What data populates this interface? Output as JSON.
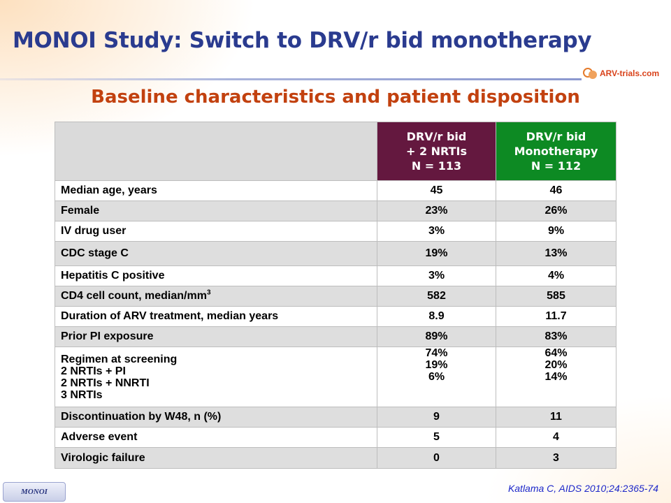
{
  "slide": {
    "title": "MONOI Study: Switch to DRV/r bid monotherapy",
    "subtitle": "Baseline characteristics and patient disposition",
    "logo_text": "ARV-trials.com",
    "citation": "Katlama C, AIDS 2010;24:2365-74",
    "tag": "MONOI"
  },
  "table": {
    "columns": [
      {
        "lines": [
          "DRV/r bid",
          "+ 2 NRTIs",
          "N = 113"
        ],
        "color": "#64183f"
      },
      {
        "lines": [
          "DRV/r bid",
          "Monotherapy",
          "N = 112"
        ],
        "color": "#0d8a23"
      }
    ],
    "rows": [
      {
        "label": "Median age, years",
        "a": "45",
        "b": "46"
      },
      {
        "label": "Female",
        "a": "23%",
        "b": "26%"
      },
      {
        "label": "IV drug user",
        "a": "3%",
        "b": "9%"
      },
      {
        "label": "CDC stage C",
        "a": "19%",
        "b": "13%"
      },
      {
        "label": "Hepatitis C positive",
        "a": "3%",
        "b": "4%"
      },
      {
        "label": "CD4 cell count, median/mm",
        "label_sup": "3",
        "a": "582",
        "b": "585"
      },
      {
        "label": "Duration of ARV treatment, median years",
        "a": "8.9",
        "b": "11.7"
      },
      {
        "label": "Prior PI exposure",
        "a": "89%",
        "b": "83%"
      },
      {
        "label": "Regimen at screening",
        "sublabels": [
          "2 NRTIs + PI",
          "2 NRTIs + NNRTI",
          "3 NRTIs"
        ],
        "a_values": [
          "74%",
          "19%",
          "6%"
        ],
        "b_values": [
          "64%",
          "20%",
          "14%"
        ]
      },
      {
        "label": "Discontinuation by W48, n (%)",
        "a": "9",
        "b": "11"
      },
      {
        "label": "Adverse event",
        "a": "5",
        "b": "4",
        "indent": true
      },
      {
        "label": "Virologic failure",
        "a": "0",
        "b": "3",
        "indent": true
      }
    ]
  }
}
